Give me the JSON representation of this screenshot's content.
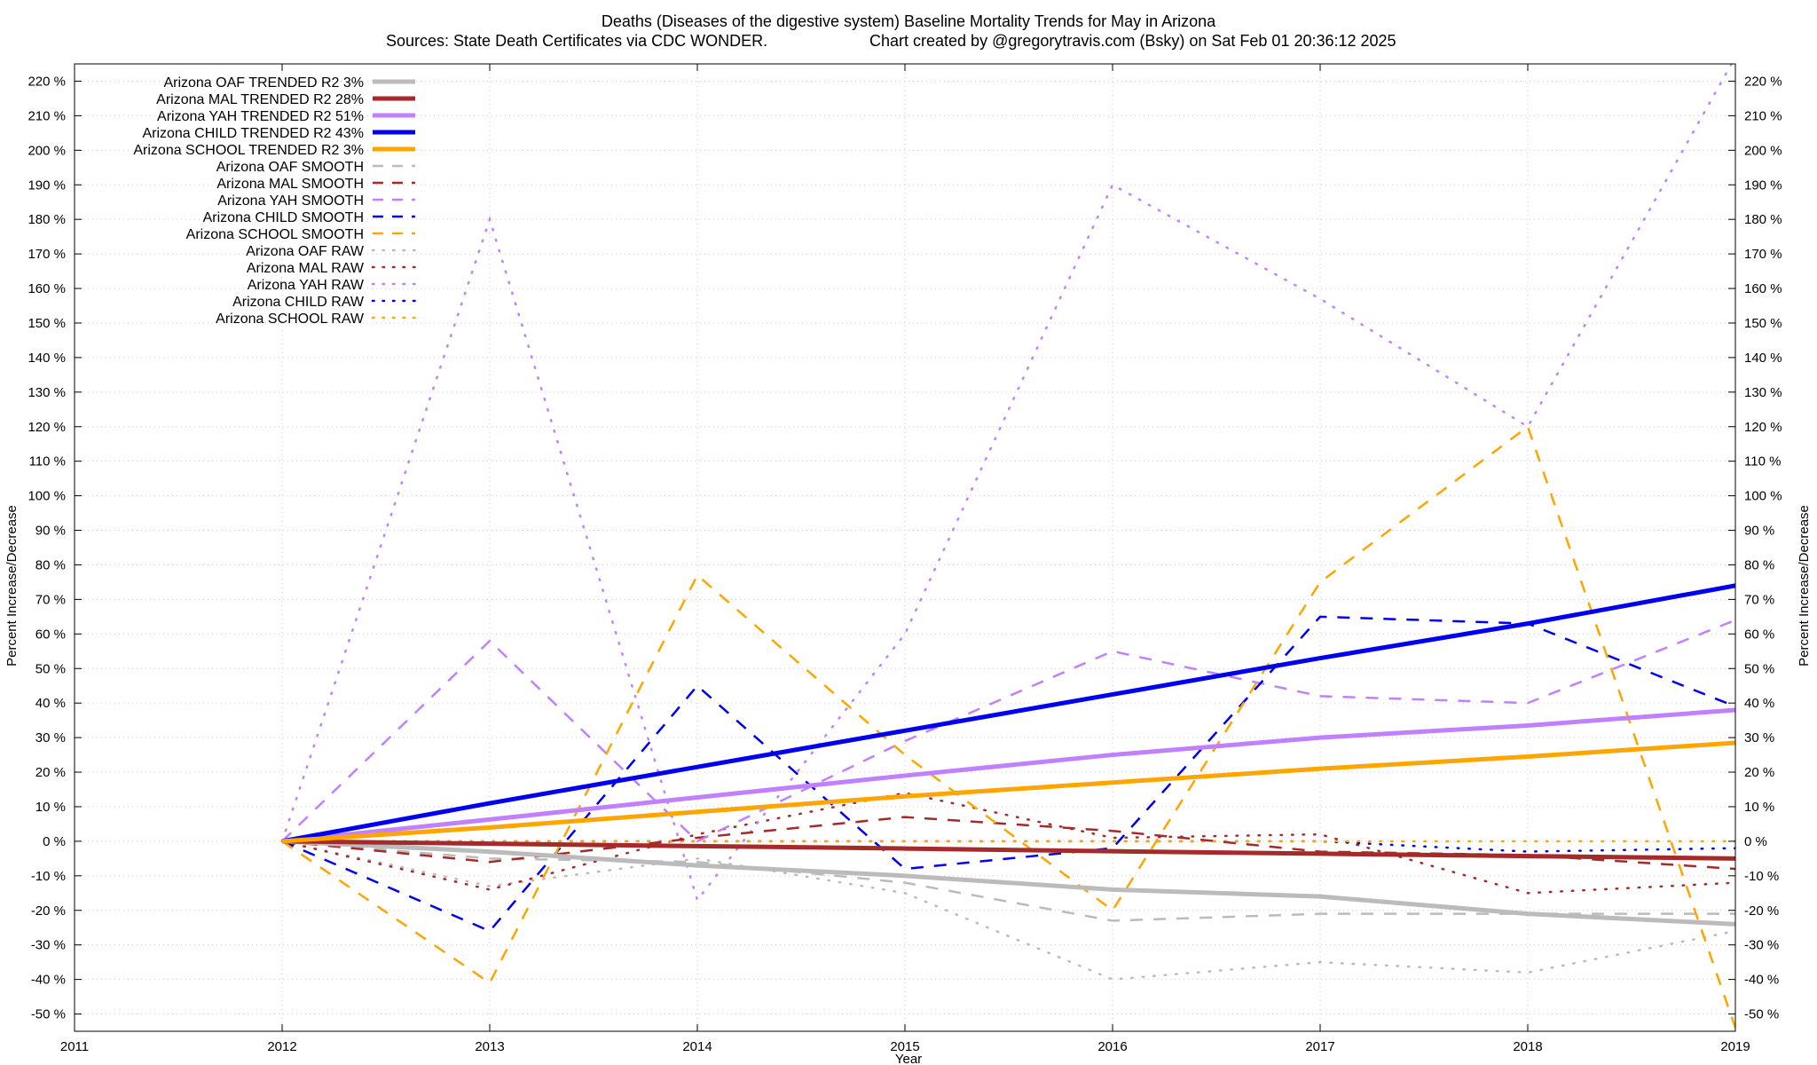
{
  "chart_data": {
    "type": "line",
    "title_line1": "Deaths (Diseases of the digestive system)  Baseline Mortality Trends for May in Arizona",
    "title_line2_left": "Sources: State Death Certificates via CDC WONDER.",
    "title_line2_right": "Chart created by @gregorytravis.com (Bsky) on Sat Feb 01 20:36:12 2025",
    "xlabel": "Year",
    "ylabel": "Percent Increase/Decrease",
    "y2label": "Percent Increase/Decrease",
    "xlim": [
      2011,
      2019
    ],
    "ylim": [
      -55,
      225
    ],
    "x_ticks": [
      2011,
      2012,
      2013,
      2014,
      2015,
      2016,
      2017,
      2018,
      2019
    ],
    "y_ticks": [
      -50,
      -40,
      -30,
      -20,
      -10,
      0,
      10,
      20,
      30,
      40,
      50,
      60,
      70,
      80,
      90,
      100,
      110,
      120,
      130,
      140,
      150,
      160,
      170,
      180,
      190,
      200,
      210,
      220
    ],
    "y_tick_suffix": " %",
    "grid": true,
    "legend_position": "top-left",
    "x": [
      2012,
      2013,
      2014,
      2015,
      2016,
      2017,
      2018,
      2019
    ],
    "series": [
      {
        "name": "Arizona OAF TRENDED R2  3%",
        "style": "solid",
        "color": "#bbbbbb",
        "values": [
          0,
          -3,
          -7,
          -10,
          -14,
          -16,
          -21,
          -24
        ]
      },
      {
        "name": "Arizona MAL TRENDED R2  28%",
        "style": "solid",
        "color": "#a52a2a",
        "values": [
          0,
          -0.7,
          -1.4,
          -2.1,
          -2.9,
          -3.6,
          -4.3,
          -5
        ]
      },
      {
        "name": "Arizona YAH TRENDED R2  51%",
        "style": "solid",
        "color": "#c080ff",
        "values": [
          0,
          6.3,
          12.7,
          19,
          25,
          30,
          33.5,
          38
        ]
      },
      {
        "name": "Arizona CHILD TRENDED R2  43%",
        "style": "solid",
        "color": "#0000ee",
        "values": [
          0,
          11,
          21.5,
          32,
          42.5,
          53,
          63,
          74
        ]
      },
      {
        "name": "Arizona SCHOOL TRENDED R2  3%",
        "style": "solid",
        "color": "#ffa500",
        "values": [
          0,
          4,
          8.5,
          13,
          17,
          21,
          24.5,
          28.5
        ]
      },
      {
        "name": "Arizona OAF SMOOTH",
        "style": "dashed",
        "color": "#bbbbbb",
        "values": [
          0,
          -5,
          -6,
          -12,
          -23,
          -21,
          -21,
          -21
        ]
      },
      {
        "name": "Arizona MAL SMOOTH",
        "style": "dashed",
        "color": "#a52a2a",
        "values": [
          0,
          -6,
          1,
          7,
          3,
          -3,
          -4,
          -8
        ]
      },
      {
        "name": "Arizona YAH SMOOTH",
        "style": "dashed",
        "color": "#c080ff",
        "values": [
          0,
          58,
          0,
          29,
          55,
          42,
          40,
          64
        ]
      },
      {
        "name": "Arizona CHILD SMOOTH",
        "style": "dashed",
        "color": "#0000ee",
        "values": [
          0,
          -26,
          45,
          -8,
          -2,
          65,
          63,
          39
        ]
      },
      {
        "name": "Arizona SCHOOL SMOOTH",
        "style": "dashed",
        "color": "#ffa500",
        "values": [
          0,
          -41,
          77,
          25,
          -20,
          75,
          120,
          -54
        ]
      },
      {
        "name": "Arizona OAF RAW",
        "style": "dotted",
        "color": "#bbbbbb",
        "values": [
          0,
          -13,
          -5,
          -15,
          -40,
          -35,
          -38,
          -26
        ]
      },
      {
        "name": "Arizona MAL RAW",
        "style": "dotted",
        "color": "#a52a2a",
        "values": [
          0,
          -14,
          2,
          14,
          1,
          2,
          -15,
          -12
        ]
      },
      {
        "name": "Arizona YAH RAW",
        "style": "dotted",
        "color": "#c080ff",
        "values": [
          0,
          180,
          -17,
          60,
          190,
          157,
          120,
          227
        ]
      },
      {
        "name": "Arizona CHILD RAW",
        "style": "dotted",
        "color": "#0000ee",
        "values": [
          0,
          0,
          0,
          0,
          0,
          0,
          -3,
          -2
        ]
      },
      {
        "name": "Arizona SCHOOL RAW",
        "style": "dotted",
        "color": "#ffa500",
        "values": [
          0,
          0,
          0,
          0,
          0,
          0,
          0,
          0
        ]
      }
    ]
  }
}
